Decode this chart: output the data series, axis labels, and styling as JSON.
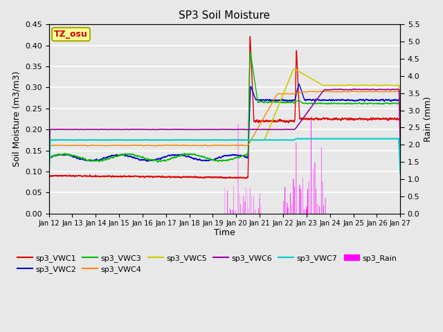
{
  "title": "SP3 Soil Moisture",
  "ylabel_left": "Soil Moisture (m3/m3)",
  "ylabel_right": "Rain (mm)",
  "xlabel": "Time",
  "ylim_left": [
    0.0,
    0.45
  ],
  "ylim_right": [
    0.0,
    5.5
  ],
  "bg_color": "#e8e8e8",
  "series_colors": {
    "sp3_VWC1": "#dd0000",
    "sp3_VWC2": "#0000cc",
    "sp3_VWC3": "#00bb00",
    "sp3_VWC4": "#ff8800",
    "sp3_VWC5": "#cccc00",
    "sp3_VWC6": "#990099",
    "sp3_VWC7": "#00cccc",
    "sp3_Rain": "#ff00ff"
  },
  "annotation_text": "TZ_osu",
  "annotation_color": "#cc0000",
  "annotation_bg": "#ffff99",
  "annotation_border": "#aaaa00"
}
